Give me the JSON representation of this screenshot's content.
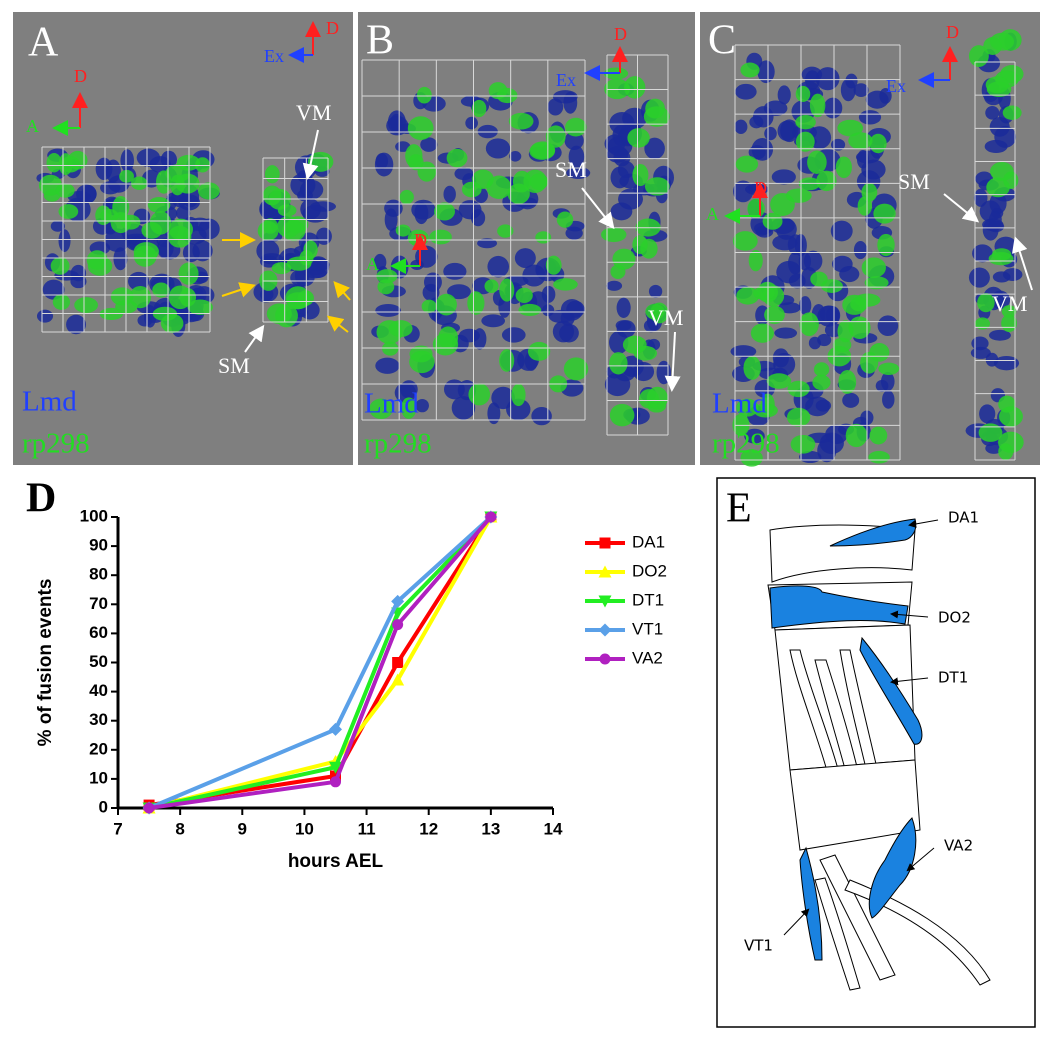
{
  "panel_a": {
    "label": "A",
    "dorsal": "D",
    "anterior": "A",
    "dorsal_side": "D",
    "exterior": "Ex",
    "annotations": [
      "VM",
      "SM"
    ],
    "stain_1": "Lmd",
    "stain_2": "rp298"
  },
  "panel_b": {
    "label": "B",
    "dorsal_side": "D",
    "exterior": "Ex",
    "dorsal": "D",
    "anterior": "A",
    "annotations": [
      "SM",
      "VM"
    ],
    "stain_1": "Lmd",
    "stain_2": "rp298"
  },
  "panel_c": {
    "label": "C",
    "dorsal_side": "D",
    "exterior": "Ex",
    "dorsal": "D",
    "anterior": "A",
    "annotations": [
      "SM",
      "VM"
    ],
    "stain_1": "Lmd",
    "stain_2": "rp298"
  },
  "panel_d": {
    "label": "D"
  },
  "chart_data": {
    "type": "line",
    "x_label": "hours AEL",
    "y_label": "% of fusion events",
    "x": [
      7.5,
      10.5,
      11.5,
      13
    ],
    "series": [
      {
        "name": "DA1",
        "color": "#ff0000",
        "marker": "square",
        "values": [
          1,
          11,
          50,
          100
        ]
      },
      {
        "name": "DO2",
        "color": "#ffff00",
        "marker": "triangle-up",
        "values": [
          0,
          16,
          44,
          100
        ]
      },
      {
        "name": "DT1",
        "color": "#22ee22",
        "marker": "triangle-down",
        "values": [
          0,
          14,
          67,
          100
        ]
      },
      {
        "name": "VT1",
        "color": "#5aa0e8",
        "marker": "diamond",
        "values": [
          0,
          27,
          71,
          100
        ]
      },
      {
        "name": "VA2",
        "color": "#b020c0",
        "marker": "circle",
        "values": [
          0,
          9,
          63,
          100
        ]
      }
    ],
    "xlim": [
      7,
      14
    ],
    "xticks": [
      7,
      8,
      9,
      10,
      11,
      12,
      13,
      14
    ],
    "ylim": [
      0,
      100
    ],
    "yticks": [
      0,
      10,
      20,
      30,
      40,
      50,
      60,
      70,
      80,
      90,
      100
    ],
    "grid": false
  },
  "panel_e": {
    "label": "E",
    "muscles": [
      "DA1",
      "DO2",
      "DT1",
      "VA2",
      "VT1"
    ]
  }
}
